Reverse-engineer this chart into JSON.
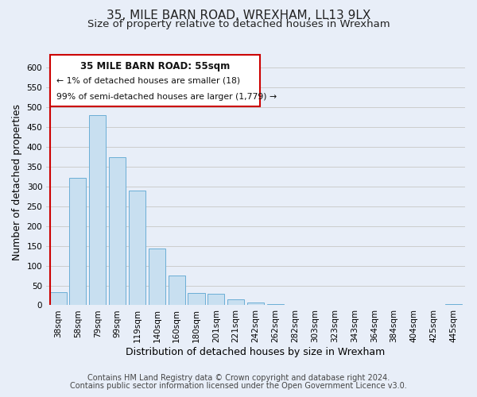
{
  "title": "35, MILE BARN ROAD, WREXHAM, LL13 9LX",
  "subtitle": "Size of property relative to detached houses in Wrexham",
  "xlabel": "Distribution of detached houses by size in Wrexham",
  "ylabel": "Number of detached properties",
  "bar_labels": [
    "38sqm",
    "58sqm",
    "79sqm",
    "99sqm",
    "119sqm",
    "140sqm",
    "160sqm",
    "180sqm",
    "201sqm",
    "221sqm",
    "242sqm",
    "262sqm",
    "282sqm",
    "303sqm",
    "323sqm",
    "343sqm",
    "364sqm",
    "384sqm",
    "404sqm",
    "425sqm",
    "445sqm"
  ],
  "bar_values": [
    32,
    322,
    480,
    374,
    290,
    144,
    75,
    31,
    29,
    15,
    7,
    2,
    1,
    0,
    0,
    0,
    0,
    0,
    0,
    0,
    2
  ],
  "bar_color": "#c8dff0",
  "bar_edge_color": "#6baed6",
  "highlight_bar_edge_color": "#cc0000",
  "ylim": [
    0,
    620
  ],
  "yticks": [
    0,
    50,
    100,
    150,
    200,
    250,
    300,
    350,
    400,
    450,
    500,
    550,
    600
  ],
  "annotation_title": "35 MILE BARN ROAD: 55sqm",
  "annotation_line1": "← 1% of detached houses are smaller (18)",
  "annotation_line2": "99% of semi-detached houses are larger (1,779) →",
  "footer_line1": "Contains HM Land Registry data © Crown copyright and database right 2024.",
  "footer_line2": "Contains public sector information licensed under the Open Government Licence v3.0.",
  "grid_color": "#cccccc",
  "background_color": "#e8eef8",
  "title_fontsize": 11,
  "subtitle_fontsize": 9.5,
  "axis_label_fontsize": 9,
  "tick_fontsize": 7.5,
  "footer_fontsize": 7
}
